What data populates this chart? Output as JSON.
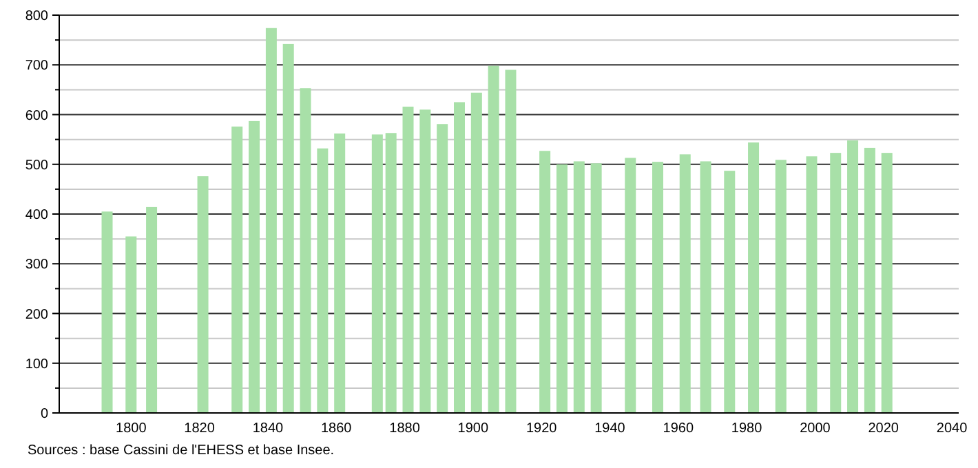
{
  "chart_data": {
    "type": "bar",
    "x": [
      1793,
      1800,
      1806,
      1821,
      1831,
      1836,
      1841,
      1846,
      1851,
      1856,
      1861,
      1872,
      1876,
      1881,
      1886,
      1891,
      1896,
      1901,
      1906,
      1911,
      1921,
      1926,
      1931,
      1936,
      1946,
      1954,
      1962,
      1968,
      1975,
      1982,
      1990,
      1999,
      2006,
      2011,
      2016,
      2021
    ],
    "values": [
      405,
      355,
      414,
      476,
      576,
      587,
      774,
      742,
      653,
      532,
      562,
      560,
      563,
      616,
      610,
      581,
      625,
      644,
      698,
      690,
      527,
      500,
      506,
      502,
      513,
      505,
      520,
      506,
      487,
      544,
      509,
      516,
      523,
      548,
      533,
      523
    ],
    "color": "#a8e0a8",
    "xlim": [
      1779,
      2042
    ],
    "xticks": [
      1800,
      1820,
      1840,
      1860,
      1880,
      1900,
      1920,
      1940,
      1960,
      1980,
      2000,
      2020,
      2040
    ],
    "ylim": [
      0,
      800
    ],
    "yticks": [
      0,
      {
        "value": 50,
        "label": null
      },
      100,
      {
        "value": 150,
        "label": null
      },
      200,
      {
        "value": 250,
        "label": null
      },
      300,
      {
        "value": 350,
        "label": null
      },
      400,
      {
        "value": 450,
        "label": null
      },
      500,
      {
        "value": 550,
        "label": null
      },
      600,
      {
        "value": 650,
        "label": null
      },
      700,
      {
        "value": 750,
        "label": null
      },
      800
    ],
    "grid": "y",
    "annotations": [
      "Sources : base Cassini de l'EHESS et base Insee."
    ]
  }
}
